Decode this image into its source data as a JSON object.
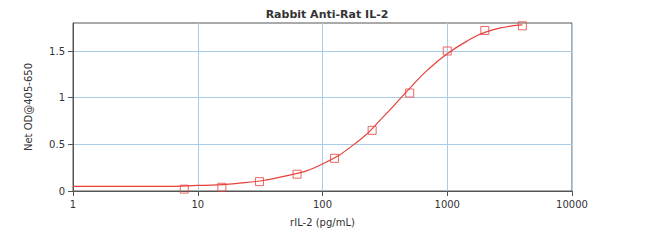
{
  "chart_data": {
    "type": "scatter",
    "title": "Rabbit Anti-Rat IL-2",
    "x_label": "rIL-2 (pg/mL)",
    "y_label": "Net OD@405-650",
    "log": "x",
    "grid": true,
    "xlim": [
      1,
      10000
    ],
    "xticks": [
      1,
      10,
      100,
      1000,
      10000
    ],
    "ylim": [
      0,
      1.8
    ],
    "yticks": [
      0,
      0.5,
      1,
      1.5
    ],
    "series": [
      {
        "type": "scatter",
        "marker": "square",
        "color": "#e8413c",
        "x": [
          7.8,
          15.6,
          31.25,
          62.5,
          125,
          250,
          500,
          1000,
          2000,
          4000
        ],
        "values": [
          0.02,
          0.04,
          0.1,
          0.18,
          0.35,
          0.65,
          1.05,
          1.5,
          1.72,
          1.77
        ]
      },
      {
        "type": "line",
        "line_style": "solid",
        "color": "#e8413c",
        "x": [
          1,
          2,
          5,
          10,
          20,
          50,
          100,
          200,
          300,
          500,
          700,
          1000,
          1500,
          2000,
          3000,
          4000
        ],
        "values": [
          0.05,
          0.05,
          0.05,
          0.06,
          0.08,
          0.16,
          0.29,
          0.55,
          0.78,
          1.1,
          1.3,
          1.47,
          1.62,
          1.7,
          1.76,
          1.78
        ]
      }
    ]
  }
}
